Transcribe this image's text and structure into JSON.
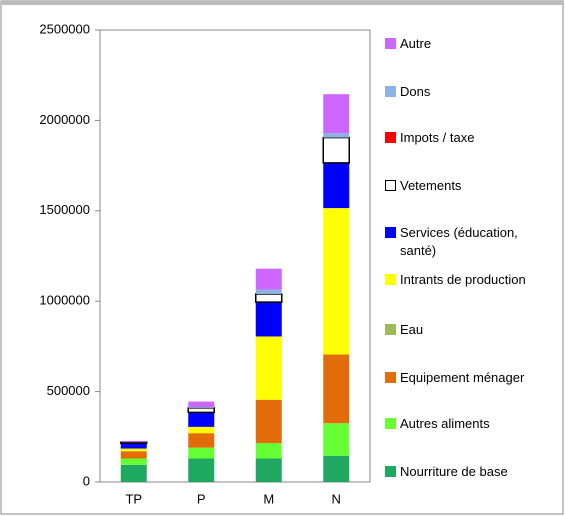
{
  "chart_data": {
    "type": "stacked_bar",
    "categories": [
      "TP",
      "P",
      "M",
      "N"
    ],
    "ylim": [
      0,
      2500000
    ],
    "yticks": [
      0,
      500000,
      1000000,
      1500000,
      2000000,
      2500000
    ],
    "series": [
      {
        "name": "Nourriture de base",
        "color": "#1fa860",
        "values": [
          95000,
          130000,
          130000,
          145000
        ]
      },
      {
        "name": "Autres aliments",
        "color": "#66ff33",
        "values": [
          35000,
          60000,
          85000,
          180000
        ]
      },
      {
        "name": "Equipement ménager",
        "color": "#e36c0a",
        "values": [
          40000,
          80000,
          240000,
          380000
        ]
      },
      {
        "name": "Eau",
        "color": "#9bbb59",
        "values": [
          0,
          0,
          0,
          0
        ]
      },
      {
        "name": "Intrants de production",
        "color": "#ffff00",
        "values": [
          15000,
          35000,
          350000,
          810000
        ]
      },
      {
        "name": "Services (éducation, santé)",
        "color": "#0000ff",
        "values": [
          30000,
          80000,
          190000,
          250000
        ]
      },
      {
        "name": "Vetements",
        "color": "#ffffff",
        "values": [
          5000,
          25000,
          45000,
          140000
        ]
      },
      {
        "name": "Impots / taxe",
        "color": "#ff0000",
        "values": [
          0,
          0,
          0,
          0
        ]
      },
      {
        "name": "Dons",
        "color": "#8db3e2",
        "values": [
          2000,
          5000,
          25000,
          25000
        ]
      },
      {
        "name": "Autre",
        "color": "#cc66ff",
        "values": [
          5000,
          30000,
          115000,
          215000
        ]
      }
    ]
  }
}
